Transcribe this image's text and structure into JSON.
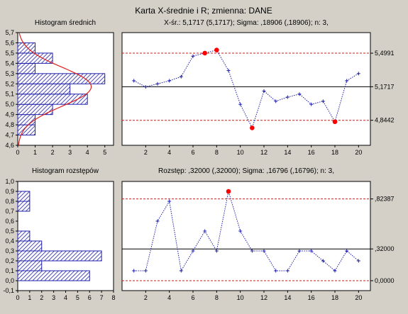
{
  "title": "Karta X-średnie i R; zmienna:  DANE",
  "chart_data": [
    {
      "type": "bar",
      "orientation": "horizontal",
      "title": "Histogram średnich",
      "categories": [
        4.75,
        4.85,
        4.95,
        5.05,
        5.15,
        5.25,
        5.35,
        5.45,
        5.55
      ],
      "values": [
        1,
        1,
        2,
        4,
        3,
        5,
        1,
        2,
        1
      ],
      "ylim": [
        4.6,
        5.7
      ],
      "yticks": [
        "4,6",
        "4,7",
        "4,8",
        "4,9",
        "5,0",
        "5,1",
        "5,2",
        "5,3",
        "5,4",
        "5,5",
        "5,6",
        "5,7"
      ],
      "xlim": [
        0,
        5.5
      ],
      "xticks": [
        "0",
        "1",
        "2",
        "3",
        "4",
        "5"
      ],
      "normal_curve": {
        "mean": 5.1717,
        "sd": 0.1891,
        "n": 20,
        "bin_width": 0.1
      },
      "bar_color": "#1f1fa8",
      "curve_color": "#e0201c"
    },
    {
      "type": "line",
      "title": "X-śr.: 5,1717 (5,1717); Sigma: ,18906 (,18906); n: 3,",
      "x": [
        1,
        2,
        3,
        4,
        5,
        6,
        7,
        8,
        9,
        10,
        11,
        12,
        13,
        14,
        15,
        16,
        17,
        18,
        19,
        20
      ],
      "y": [
        5.23,
        5.17,
        5.2,
        5.23,
        5.27,
        5.47,
        5.5,
        5.53,
        5.33,
        5.0,
        4.77,
        5.13,
        5.03,
        5.07,
        5.1,
        5.0,
        5.03,
        4.83,
        5.23,
        5.3
      ],
      "out_of_control": [
        7,
        8,
        11,
        18
      ],
      "xlim": [
        0,
        21
      ],
      "ylim": [
        4.6,
        5.7
      ],
      "xticks": [
        "2",
        "4",
        "6",
        "8",
        "10",
        "12",
        "14",
        "16",
        "18",
        "20"
      ],
      "limits": [
        {
          "value": 5.4991,
          "label": "5,4991",
          "kind": "ucl"
        },
        {
          "value": 5.1717,
          "label": "5,1717",
          "kind": "center"
        },
        {
          "value": 4.8442,
          "label": "4,8442",
          "kind": "lcl"
        }
      ],
      "line_color": "#1f1fa8",
      "limit_color": "#c81c1c",
      "alarm_color": "#ff0000"
    },
    {
      "type": "bar",
      "orientation": "horizontal",
      "title": "Histogram rozstępów",
      "categories": [
        0.05,
        0.15,
        0.25,
        0.35,
        0.45,
        0.55,
        0.65,
        0.75,
        0.85,
        0.95
      ],
      "values": [
        6,
        2,
        7,
        2,
        1,
        0,
        0,
        1,
        1,
        0
      ],
      "ylim": [
        -0.1,
        1.0
      ],
      "yticks": [
        "-0,1",
        "0,0",
        "0,1",
        "0,2",
        "0,3",
        "0,4",
        "0,5",
        "0,6",
        "0,7",
        "0,8",
        "0,9",
        "1,0"
      ],
      "xlim": [
        0,
        8
      ],
      "xticks": [
        "0",
        "1",
        "2",
        "3",
        "4",
        "5",
        "6",
        "7",
        "8"
      ],
      "bar_color": "#1f1fa8"
    },
    {
      "type": "line",
      "title": "Rozstęp: ,32000 (,32000); Sigma: ,16796 (,16796); n: 3,",
      "x": [
        1,
        2,
        3,
        4,
        5,
        6,
        7,
        8,
        9,
        10,
        11,
        12,
        13,
        14,
        15,
        16,
        17,
        18,
        19,
        20
      ],
      "y": [
        0.1,
        0.1,
        0.6,
        0.8,
        0.1,
        0.3,
        0.5,
        0.3,
        0.9,
        0.5,
        0.3,
        0.3,
        0.1,
        0.1,
        0.3,
        0.3,
        0.2,
        0.1,
        0.3,
        0.2
      ],
      "out_of_control": [
        9
      ],
      "xlim": [
        0,
        21
      ],
      "ylim": [
        -0.1,
        1.0
      ],
      "xticks": [
        "2",
        "4",
        "6",
        "8",
        "10",
        "12",
        "14",
        "16",
        "18",
        "20"
      ],
      "limits": [
        {
          "value": 0.82387,
          "label": ",82387",
          "kind": "ucl"
        },
        {
          "value": 0.32,
          "label": ",32000",
          "kind": "center"
        },
        {
          "value": 0.0,
          "label": "0,0000",
          "kind": "lcl"
        }
      ],
      "line_color": "#1f1fa8",
      "limit_color": "#c81c1c",
      "alarm_color": "#ff0000"
    }
  ]
}
